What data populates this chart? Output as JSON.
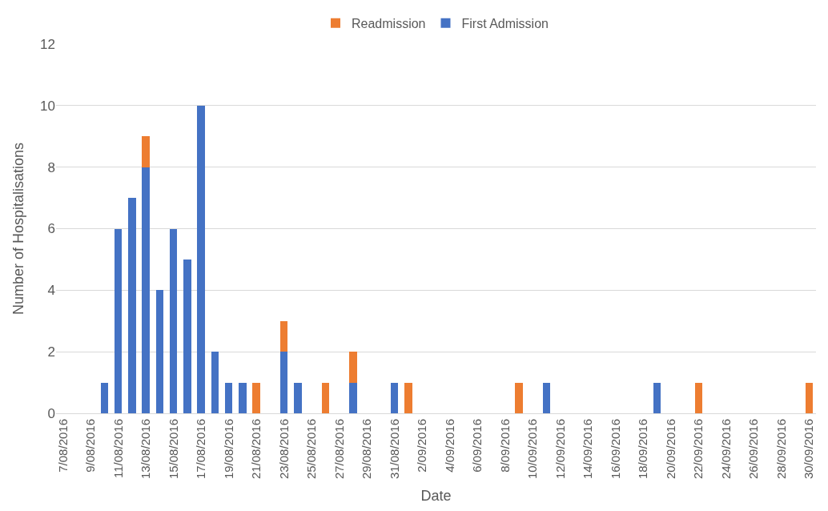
{
  "chart_data": {
    "type": "bar",
    "stacked": true,
    "xlabel": "Date",
    "ylabel": "Number of Hospitalisations",
    "categories": [
      "7/08/2016",
      null,
      "9/08/2016",
      null,
      "11/08/2016",
      null,
      "13/08/2016",
      null,
      "15/08/2016",
      null,
      "17/08/2016",
      null,
      "19/08/2016",
      null,
      "21/08/2016",
      null,
      "23/08/2016",
      null,
      "25/08/2016",
      null,
      "27/08/2016",
      null,
      "29/08/2016",
      null,
      "31/08/2016",
      null,
      "2/09/2016",
      null,
      "4/09/2016",
      null,
      "6/09/2016",
      null,
      "8/09/2016",
      null,
      "10/09/2016",
      null,
      "12/09/2016",
      null,
      "14/09/2016",
      null,
      "16/09/2016",
      null,
      "18/09/2016",
      null,
      "20/09/2016",
      null,
      "22/09/2016",
      null,
      "24/09/2016",
      null,
      "26/09/2016",
      null,
      "28/09/2016",
      null,
      "30/09/2016"
    ],
    "series": [
      {
        "name": "First Admission",
        "color": "#4472c4",
        "values": [
          0,
          0,
          0,
          1,
          6,
          7,
          8,
          4,
          6,
          5,
          10,
          2,
          1,
          1,
          0,
          0,
          2,
          1,
          0,
          0,
          0,
          1,
          0,
          0,
          1,
          0,
          0,
          0,
          0,
          0,
          0,
          0,
          0,
          0,
          0,
          1,
          0,
          0,
          0,
          0,
          0,
          0,
          0,
          1,
          0,
          0,
          0,
          0,
          0,
          0,
          0,
          0,
          0,
          0,
          0
        ]
      },
      {
        "name": "Readmission",
        "color": "#ed7d31",
        "values": [
          0,
          0,
          0,
          0,
          0,
          0,
          1,
          0,
          0,
          0,
          0,
          0,
          0,
          0,
          1,
          0,
          1,
          0,
          0,
          1,
          0,
          1,
          0,
          0,
          0,
          1,
          0,
          0,
          0,
          0,
          0,
          0,
          0,
          1,
          0,
          0,
          0,
          0,
          0,
          0,
          0,
          0,
          0,
          0,
          0,
          0,
          1,
          0,
          0,
          0,
          0,
          0,
          0,
          0,
          1
        ]
      }
    ],
    "ylim": [
      0,
      12
    ],
    "yticks": [
      0,
      2,
      4,
      6,
      8,
      10,
      12
    ],
    "grid": "y",
    "legend": "top"
  }
}
